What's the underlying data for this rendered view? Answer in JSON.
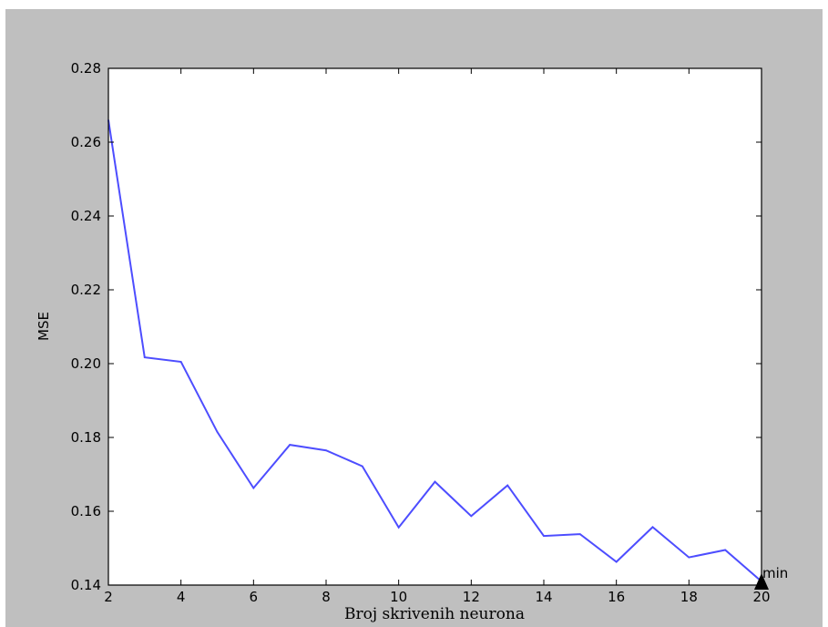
{
  "chart_data": {
    "type": "line",
    "xlabel": "Broj skrivenih neurona",
    "ylabel": "MSE",
    "xlim": [
      2,
      20
    ],
    "ylim": [
      0.14,
      0.28
    ],
    "x_ticks": [
      2,
      4,
      6,
      8,
      10,
      12,
      14,
      16,
      18,
      20
    ],
    "x_tick_labels": [
      "2",
      "4",
      "6",
      "8",
      "10",
      "12",
      "14",
      "16",
      "18",
      "20"
    ],
    "y_ticks": [
      0.14,
      0.16,
      0.18,
      0.2,
      0.22,
      0.24,
      0.26,
      0.28
    ],
    "y_tick_labels": [
      "0.14",
      "0.16",
      "0.18",
      "0.20",
      "0.22",
      "0.24",
      "0.26",
      "0.28"
    ],
    "grid": false,
    "series": [
      {
        "color": "#4d4dff",
        "x": [
          2,
          3,
          4,
          5,
          6,
          7,
          8,
          9,
          10,
          11,
          12,
          13,
          14,
          15,
          16,
          17,
          18,
          19,
          20
        ],
        "values": [
          0.266,
          0.2017,
          0.2005,
          0.1815,
          0.1663,
          0.178,
          0.1765,
          0.1722,
          0.1556,
          0.168,
          0.1587,
          0.167,
          0.1533,
          0.1538,
          0.1463,
          0.1557,
          0.1475,
          0.1495,
          0.141
        ]
      }
    ],
    "annotations": [
      {
        "text": "min",
        "x": 20,
        "y": 0.141,
        "marker": "triangle-up",
        "color": "#000000"
      }
    ]
  }
}
